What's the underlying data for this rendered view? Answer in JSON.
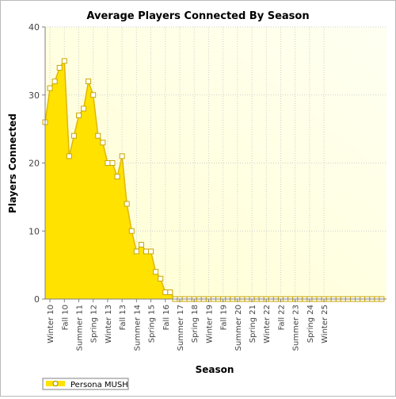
{
  "chart_data": {
    "type": "area",
    "title": "Average Players Connected By Season",
    "xlabel": "Season",
    "ylabel": "Players Connected",
    "ylim": [
      0,
      40
    ],
    "yticks": [
      0,
      10,
      20,
      30,
      40
    ],
    "grid": true,
    "legend_position": "bottom-left",
    "x_tick_labels": [
      "Winter 10",
      "Fall 10",
      "Summer 11",
      "Spring 12",
      "Winter 13",
      "Fall 13",
      "Summer 14",
      "Spring 15",
      "Fall 16",
      "Summer 17",
      "Spring 18",
      "Winter 19",
      "Fall 19",
      "Summer 20",
      "Spring 21",
      "Winter 22",
      "Fall 22",
      "Summer 23",
      "Spring 24",
      "Winter 25"
    ],
    "series": [
      {
        "name": "Persona MUSH",
        "line_color": "#e0b800",
        "fill_color": "#ffe200",
        "values": [
          26,
          31,
          32,
          34,
          35,
          21,
          24,
          27,
          28,
          32,
          30,
          24,
          23,
          20,
          20,
          18,
          21,
          14,
          10,
          7,
          8,
          7,
          7,
          4,
          3,
          1,
          1,
          0,
          0,
          0,
          0,
          0,
          0,
          0,
          0,
          0,
          0,
          0,
          0,
          0,
          0,
          0,
          0,
          0,
          0,
          0,
          0,
          0,
          0,
          0,
          0,
          0,
          0,
          0,
          0,
          0,
          0,
          0,
          0,
          0,
          0,
          0,
          0,
          0,
          0,
          0,
          0,
          0,
          0,
          0,
          0
        ]
      }
    ]
  }
}
